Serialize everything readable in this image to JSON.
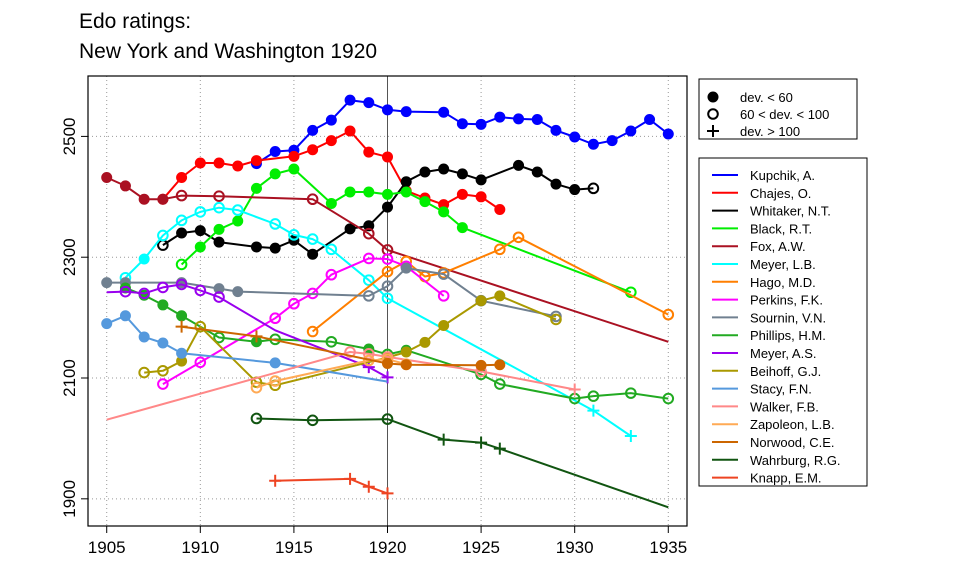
{
  "title_lines": [
    "Edo ratings:",
    "New York and Washington 1920"
  ],
  "chart_data": {
    "type": "line",
    "title": "Edo ratings: New York and Washington 1920",
    "xlim": [
      1904,
      1936
    ],
    "ylim": [
      1855,
      2600
    ],
    "x_ticks": [
      1905,
      1910,
      1915,
      1920,
      1925,
      1930,
      1935
    ],
    "y_ticks": [
      1900,
      2100,
      2300,
      2500
    ],
    "reference_line_x": 1920,
    "grid": "dotted",
    "symbol_legend": [
      {
        "label": "dev. < 60",
        "marker": "filled"
      },
      {
        "label": "60 < dev. < 100",
        "marker": "open"
      },
      {
        "label": "dev. > 100",
        "marker": "plus"
      }
    ],
    "series": [
      {
        "name": "Kupchik, A.",
        "color": "#0000ff",
        "points": [
          [
            1913,
            2455,
            "f"
          ],
          [
            1914,
            2475,
            "f"
          ],
          [
            1915,
            2477,
            "f"
          ],
          [
            1916,
            2510,
            "f"
          ],
          [
            1917,
            2527,
            "f"
          ],
          [
            1918,
            2560,
            "f"
          ],
          [
            1919,
            2556,
            "f"
          ],
          [
            1920,
            2544,
            "f"
          ],
          [
            1921,
            2541,
            "f"
          ],
          [
            1923,
            2540,
            "f"
          ],
          [
            1924,
            2521,
            "f"
          ],
          [
            1925,
            2520,
            "f"
          ],
          [
            1926,
            2532,
            "f"
          ],
          [
            1927,
            2529,
            "f"
          ],
          [
            1928,
            2528,
            "f"
          ],
          [
            1929,
            2510,
            "f"
          ],
          [
            1930,
            2499,
            "f"
          ],
          [
            1931,
            2487,
            "f"
          ],
          [
            1932,
            2493,
            "f"
          ],
          [
            1933,
            2509,
            "f"
          ],
          [
            1934,
            2528,
            "f"
          ],
          [
            1935,
            2504,
            "f"
          ]
        ]
      },
      {
        "name": "Chajes, O.",
        "color": "#ff0000",
        "points": [
          [
            1908,
            2396,
            "f"
          ],
          [
            1909,
            2432,
            "f"
          ],
          [
            1910,
            2456,
            "f"
          ],
          [
            1911,
            2456,
            "f"
          ],
          [
            1912,
            2451,
            "f"
          ],
          [
            1913,
            2460,
            "f"
          ],
          [
            1915,
            2467,
            "f"
          ],
          [
            1916,
            2478,
            "f"
          ],
          [
            1917,
            2493,
            "f"
          ],
          [
            1918,
            2509,
            "f"
          ],
          [
            1919,
            2474,
            "f"
          ],
          [
            1920,
            2466,
            "f"
          ],
          [
            1921,
            2410,
            "f"
          ],
          [
            1922,
            2398,
            "f"
          ],
          [
            1923,
            2387,
            "f"
          ],
          [
            1924,
            2404,
            "f"
          ],
          [
            1925,
            2400,
            "f"
          ],
          [
            1926,
            2379,
            "f"
          ]
        ]
      },
      {
        "name": "Whitaker, N.T.",
        "color": "#000000",
        "points": [
          [
            1908,
            2320,
            "o"
          ],
          [
            1909,
            2340,
            "f"
          ],
          [
            1910,
            2344,
            "f"
          ],
          [
            1911,
            2325,
            "f"
          ],
          [
            1913,
            2317,
            "f"
          ],
          [
            1914,
            2315,
            "f"
          ],
          [
            1915,
            2328,
            "f"
          ],
          [
            1916,
            2305,
            "f"
          ],
          [
            1918,
            2347,
            "f"
          ],
          [
            1919,
            2352,
            "f"
          ],
          [
            1920,
            2383,
            "f"
          ],
          [
            1921,
            2425,
            "f"
          ],
          [
            1922,
            2441,
            "f"
          ],
          [
            1923,
            2446,
            "f"
          ],
          [
            1924,
            2438,
            "f"
          ],
          [
            1925,
            2428,
            "f"
          ],
          [
            1927,
            2452,
            "f"
          ],
          [
            1928,
            2441,
            "f"
          ],
          [
            1929,
            2421,
            "f"
          ],
          [
            1930,
            2412,
            "f"
          ],
          [
            1931,
            2414,
            "o"
          ]
        ]
      },
      {
        "name": "Black, R.T.",
        "color": "#00ee00",
        "points": [
          [
            1909,
            2288,
            "o"
          ],
          [
            1910,
            2317,
            "f"
          ],
          [
            1911,
            2346,
            "f"
          ],
          [
            1912,
            2360,
            "f"
          ],
          [
            1913,
            2414,
            "f"
          ],
          [
            1914,
            2438,
            "f"
          ],
          [
            1915,
            2446,
            "f"
          ],
          [
            1917,
            2389,
            "f"
          ],
          [
            1918,
            2408,
            "f"
          ],
          [
            1919,
            2408,
            "f"
          ],
          [
            1920,
            2404,
            "f"
          ],
          [
            1921,
            2408,
            "f"
          ],
          [
            1922,
            2392,
            "f"
          ],
          [
            1923,
            2375,
            "f"
          ],
          [
            1924,
            2349,
            "f"
          ],
          [
            1933,
            2242,
            "o"
          ]
        ]
      },
      {
        "name": "Fox, A.W.",
        "color": "#aa1122",
        "points": [
          [
            1905,
            2432,
            "f"
          ],
          [
            1906,
            2418,
            "f"
          ],
          [
            1907,
            2396,
            "f"
          ],
          [
            1908,
            2396,
            "f"
          ],
          [
            1909,
            2402,
            "o"
          ],
          [
            1911,
            2401,
            "o"
          ],
          [
            1916,
            2396,
            "o"
          ],
          [
            1919,
            2339,
            "o"
          ],
          [
            1920,
            2312,
            "o"
          ],
          [
            1935,
            2160,
            "n"
          ]
        ]
      },
      {
        "name": "Meyer, L.B.",
        "color": "#00ffff",
        "points": [
          [
            1906,
            2266,
            "o"
          ],
          [
            1907,
            2297,
            "f"
          ],
          [
            1908,
            2336,
            "o"
          ],
          [
            1909,
            2361,
            "o"
          ],
          [
            1910,
            2375,
            "o"
          ],
          [
            1911,
            2382,
            "o"
          ],
          [
            1912,
            2378,
            "o"
          ],
          [
            1914,
            2355,
            "o"
          ],
          [
            1915,
            2337,
            "o"
          ],
          [
            1916,
            2330,
            "o"
          ],
          [
            1917,
            2313,
            "o"
          ],
          [
            1919,
            2262,
            "o"
          ],
          [
            1920,
            2232,
            "o"
          ],
          [
            1931,
            2046,
            "p"
          ],
          [
            1933,
            2004,
            "p"
          ]
        ]
      },
      {
        "name": "Hago, M.D.",
        "color": "#ff7f00",
        "points": [
          [
            1916,
            2177,
            "o"
          ],
          [
            1920,
            2276,
            "o"
          ],
          [
            1921,
            2293,
            "o"
          ],
          [
            1922,
            2268,
            "o"
          ],
          [
            1923,
            2274,
            "o"
          ],
          [
            1926,
            2313,
            "o"
          ],
          [
            1927,
            2333,
            "o"
          ],
          [
            1935,
            2205,
            "o"
          ]
        ]
      },
      {
        "name": "Perkins, F.K.",
        "color": "#ff00ff",
        "points": [
          [
            1908,
            2090,
            "o"
          ],
          [
            1910,
            2126,
            "o"
          ],
          [
            1914,
            2199,
            "o"
          ],
          [
            1915,
            2223,
            "o"
          ],
          [
            1916,
            2240,
            "o"
          ],
          [
            1917,
            2271,
            "o"
          ],
          [
            1919,
            2298,
            "o"
          ],
          [
            1920,
            2297,
            "o"
          ],
          [
            1921,
            2285,
            "o"
          ],
          [
            1923,
            2236,
            "o"
          ]
        ]
      },
      {
        "name": "Sournin, V.N.",
        "color": "#708090",
        "points": [
          [
            1905,
            2258,
            "f"
          ],
          [
            1906,
            2258,
            "f"
          ],
          [
            1909,
            2258,
            "f"
          ],
          [
            1911,
            2248,
            "f"
          ],
          [
            1912,
            2243,
            "f"
          ],
          [
            1919,
            2236,
            "o"
          ],
          [
            1920,
            2252,
            "o"
          ],
          [
            1921,
            2282,
            "f"
          ],
          [
            1923,
            2272,
            "o"
          ],
          [
            1925,
            2228,
            "o"
          ],
          [
            1929,
            2202,
            "o"
          ]
        ]
      },
      {
        "name": "Phillips, H.M.",
        "color": "#22aa22",
        "points": [
          [
            1906,
            2249,
            "f"
          ],
          [
            1907,
            2237,
            "f"
          ],
          [
            1908,
            2221,
            "f"
          ],
          [
            1909,
            2203,
            "f"
          ],
          [
            1911,
            2167,
            "o"
          ],
          [
            1913,
            2160,
            "f"
          ],
          [
            1914,
            2164,
            "o"
          ],
          [
            1917,
            2160,
            "o"
          ],
          [
            1919,
            2148,
            "f"
          ],
          [
            1920,
            2139,
            "o"
          ],
          [
            1921,
            2146,
            "f"
          ],
          [
            1925,
            2106,
            "o"
          ],
          [
            1926,
            2090,
            "o"
          ],
          [
            1930,
            2066,
            "o"
          ],
          [
            1931,
            2070,
            "o"
          ],
          [
            1933,
            2075,
            "o"
          ],
          [
            1935,
            2066,
            "o"
          ]
        ]
      },
      {
        "name": "Meyer, A.S.",
        "color": "#9900ee",
        "points": [
          [
            1905,
            2242,
            "n"
          ],
          [
            1906,
            2243,
            "o"
          ],
          [
            1907,
            2240,
            "o"
          ],
          [
            1908,
            2250,
            "o"
          ],
          [
            1909,
            2255,
            "o"
          ],
          [
            1910,
            2245,
            "o"
          ],
          [
            1911,
            2234,
            "o"
          ],
          [
            1914,
            2179,
            "n"
          ],
          [
            1919,
            2118,
            "p"
          ],
          [
            1920,
            2101,
            "p"
          ]
        ]
      },
      {
        "name": "Beihoff, G.J.",
        "color": "#aa9900",
        "points": [
          [
            1907,
            2109,
            "o"
          ],
          [
            1908,
            2112,
            "o"
          ],
          [
            1909,
            2128,
            "f"
          ],
          [
            1910,
            2185,
            "o"
          ],
          [
            1913,
            2093,
            "o"
          ],
          [
            1914,
            2088,
            "o"
          ],
          [
            1920,
            2134,
            "f"
          ],
          [
            1921,
            2143,
            "f"
          ],
          [
            1922,
            2159,
            "f"
          ],
          [
            1923,
            2187,
            "f"
          ],
          [
            1925,
            2228,
            "f"
          ],
          [
            1926,
            2236,
            "f"
          ],
          [
            1929,
            2197,
            "o"
          ]
        ]
      },
      {
        "name": "Stacy, F.N.",
        "color": "#5599dd",
        "points": [
          [
            1905,
            2190,
            "f"
          ],
          [
            1906,
            2203,
            "f"
          ],
          [
            1907,
            2168,
            "f"
          ],
          [
            1908,
            2158,
            "f"
          ],
          [
            1909,
            2141,
            "f"
          ],
          [
            1914,
            2125,
            "f"
          ],
          [
            1920,
            2094,
            "n"
          ]
        ]
      },
      {
        "name": "Walker, F.B.",
        "color": "#ff8888",
        "points": [
          [
            1905,
            2031,
            "n"
          ],
          [
            1918,
            2143,
            "o"
          ],
          [
            1919,
            2140,
            "o"
          ],
          [
            1920,
            2135,
            "o"
          ],
          [
            1925,
            2111,
            "o"
          ],
          [
            1930,
            2081,
            "p"
          ]
        ]
      },
      {
        "name": "Zapoleon, L.B.",
        "color": "#ffaa55",
        "points": [
          [
            1913,
            2084,
            "o"
          ],
          [
            1914,
            2095,
            "o"
          ],
          [
            1919,
            2129,
            "o"
          ],
          [
            1920,
            2131,
            "o"
          ],
          [
            1921,
            2123,
            "o"
          ]
        ]
      },
      {
        "name": "Norwood, C.E.",
        "color": "#cc6600",
        "points": [
          [
            1909,
            2185,
            "p"
          ],
          [
            1913,
            2169,
            "p"
          ],
          [
            1920,
            2124,
            "f"
          ],
          [
            1921,
            2122,
            "f"
          ],
          [
            1925,
            2121,
            "f"
          ],
          [
            1926,
            2122,
            "f"
          ]
        ]
      },
      {
        "name": "Wahrburg, R.G.",
        "color": "#115511",
        "points": [
          [
            1913,
            2033,
            "o"
          ],
          [
            1916,
            2030,
            "o"
          ],
          [
            1920,
            2032,
            "o"
          ],
          [
            1923,
            1998,
            "p"
          ],
          [
            1925,
            1993,
            "p"
          ],
          [
            1926,
            1983,
            "p"
          ],
          [
            1935,
            1886,
            "n"
          ]
        ]
      },
      {
        "name": "Knapp, E.M.",
        "color": "#ee4422",
        "points": [
          [
            1914,
            1930,
            "p"
          ],
          [
            1918,
            1933,
            "p"
          ],
          [
            1919,
            1920,
            "p"
          ],
          [
            1920,
            1909,
            "p"
          ]
        ]
      }
    ]
  }
}
